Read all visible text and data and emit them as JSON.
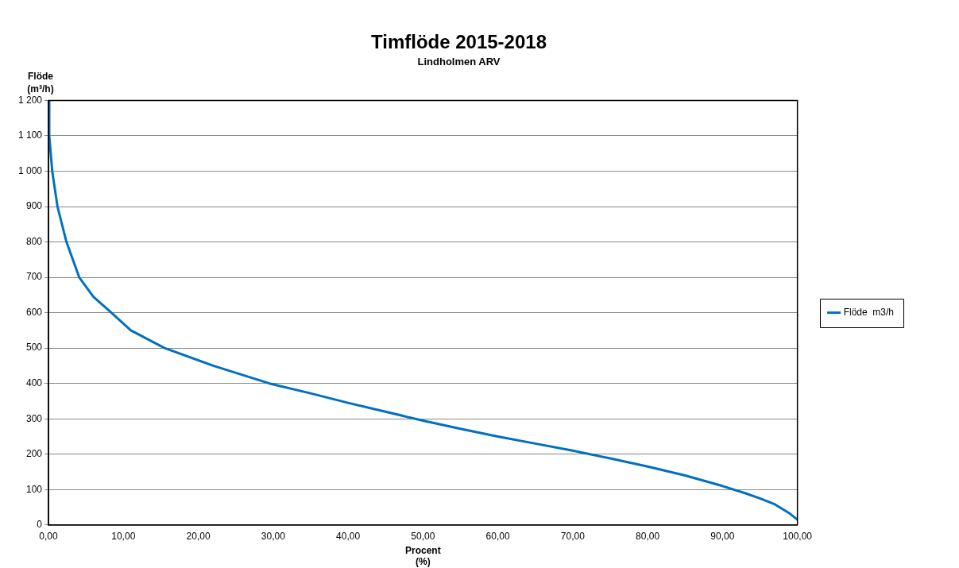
{
  "chart_data": {
    "type": "line",
    "title": "Timflöde 2015-2018",
    "subtitle": "Lindholmen ARV",
    "xlabel": "Procent\n(%)",
    "ylabel": "Flöde\n(m³/h)",
    "series": [
      {
        "name": "Flöde  m3/h",
        "color": "#0070c0",
        "x": [
          0,
          0.1,
          0.5,
          1.2,
          2.4,
          4.1,
          6,
          8.4,
          11,
          15.5,
          22,
          29.5,
          35,
          40,
          45,
          50,
          55,
          60,
          65,
          70,
          75,
          80,
          85,
          90,
          93,
          95,
          97,
          98,
          99,
          100
        ],
        "values": [
          1200,
          1100,
          1000,
          900,
          800,
          700,
          645,
          600,
          550,
          500,
          450,
          400,
          372,
          345,
          320,
          295,
          272,
          250,
          230,
          210,
          188,
          165,
          140,
          110,
          90,
          75,
          58,
          45,
          32,
          15
        ]
      }
    ],
    "xlim": [
      0,
      100
    ],
    "xticks": [
      {
        "value": 0,
        "label": "0,00"
      },
      {
        "value": 10,
        "label": "10,00"
      },
      {
        "value": 20,
        "label": "20,00"
      },
      {
        "value": 30,
        "label": "30,00"
      },
      {
        "value": 40,
        "label": "40,00"
      },
      {
        "value": 50,
        "label": "50,00"
      },
      {
        "value": 60,
        "label": "60,00"
      },
      {
        "value": 70,
        "label": "70,00"
      },
      {
        "value": 80,
        "label": "80,00"
      },
      {
        "value": 90,
        "label": "90,00"
      },
      {
        "value": 100,
        "label": "100,00"
      }
    ],
    "ylim": [
      0,
      1200
    ],
    "yticks": [
      0,
      100,
      200,
      300,
      400,
      500,
      600,
      700,
      800,
      900,
      {
        "value": 1000,
        "label": "1 000"
      },
      {
        "value": 1100,
        "label": "1 100"
      },
      {
        "value": 1200,
        "label": "1 200"
      }
    ],
    "grid": "y",
    "legend": "right",
    "marker": "none",
    "line_style": "solid"
  }
}
